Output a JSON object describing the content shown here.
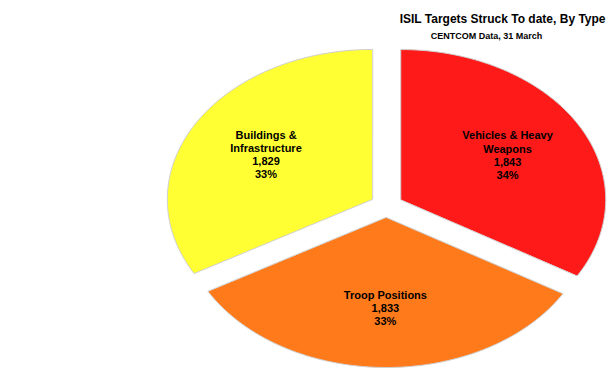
{
  "chart_data": {
    "type": "pie",
    "title": "ISIL Targets Struck To date, By Type",
    "subtitle": "CENTCOM Data, 31 March",
    "categories": [
      "Vehicles & Heavy Weapons",
      "Troop Positions",
      "Buildings & Infrastructure"
    ],
    "values": [
      1843,
      1833,
      1829
    ],
    "value_labels": [
      "1,843",
      "1,833",
      "1,829"
    ],
    "percentages": [
      34,
      33,
      33
    ],
    "percentage_labels": [
      "34%",
      "33%",
      "33%"
    ],
    "colors": [
      "#ff1a1a",
      "#ff7a1a",
      "#ffff33"
    ],
    "data_labels": true
  }
}
